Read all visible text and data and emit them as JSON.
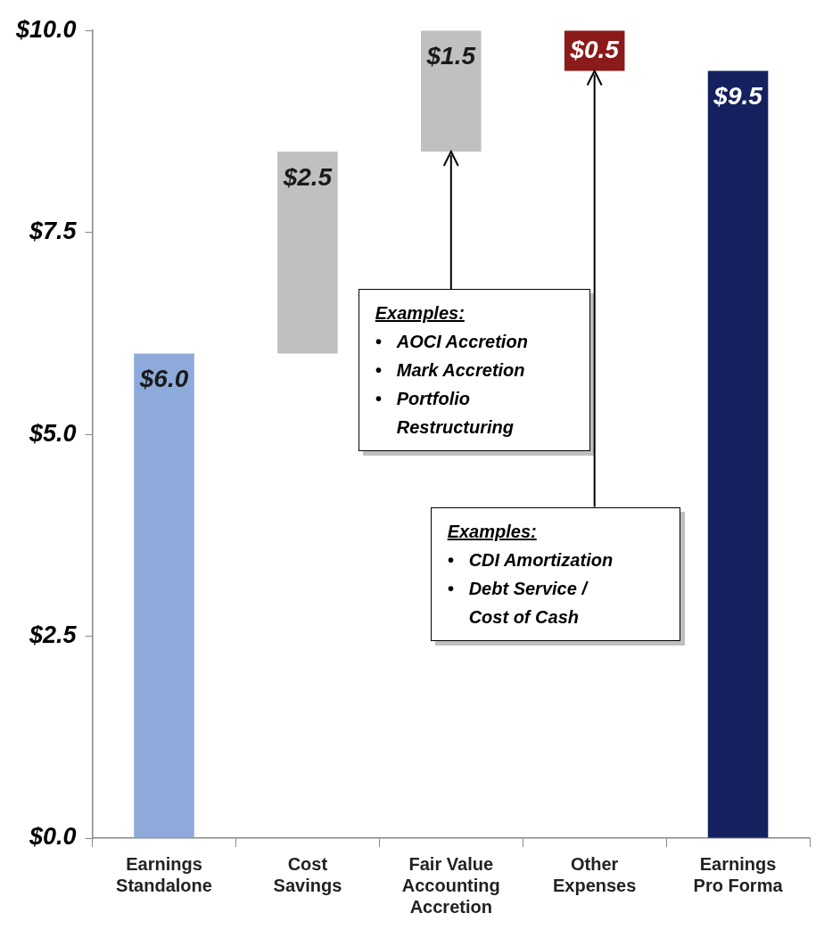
{
  "chart_data": {
    "type": "bar",
    "categories": [
      "Earnings Standalone",
      "Cost Savings",
      "Fair Value Accounting Accretion",
      "Other Expenses",
      "Earnings Pro Forma"
    ],
    "values": [
      6.0,
      2.5,
      1.5,
      0.5,
      9.5
    ],
    "base": [
      0,
      6.0,
      8.5,
      9.5,
      0
    ],
    "colors": [
      "#8eaadb",
      "#c0c0c0",
      "#c0c0c0",
      "#8b1a1a",
      "#14215e"
    ],
    "value_labels": [
      "$6.0",
      "$2.5",
      "$1.5",
      "$0.5",
      "$9.5"
    ],
    "ylim": [
      0,
      10
    ],
    "yticks": [
      {
        "value": 0,
        "label": "$0.0"
      },
      {
        "value": 2.5,
        "label": "$2.5"
      },
      {
        "value": 5,
        "label": "$5.0"
      },
      {
        "value": 7.5,
        "label": "$7.5"
      },
      {
        "value": 10,
        "label": "$10.0"
      }
    ],
    "annotations": [
      {
        "text": "Examples:\n• AOCI Accretion\n• Mark Accretion\n• Portfolio Restructuring",
        "x": "Fair Value Accounting Accretion",
        "y": 8.5
      },
      {
        "text": "Examples:\n• CDI Amortization\n• Debt Service / Cost of Cash",
        "x": "Other Expenses",
        "y": 9.5
      }
    ]
  }
}
